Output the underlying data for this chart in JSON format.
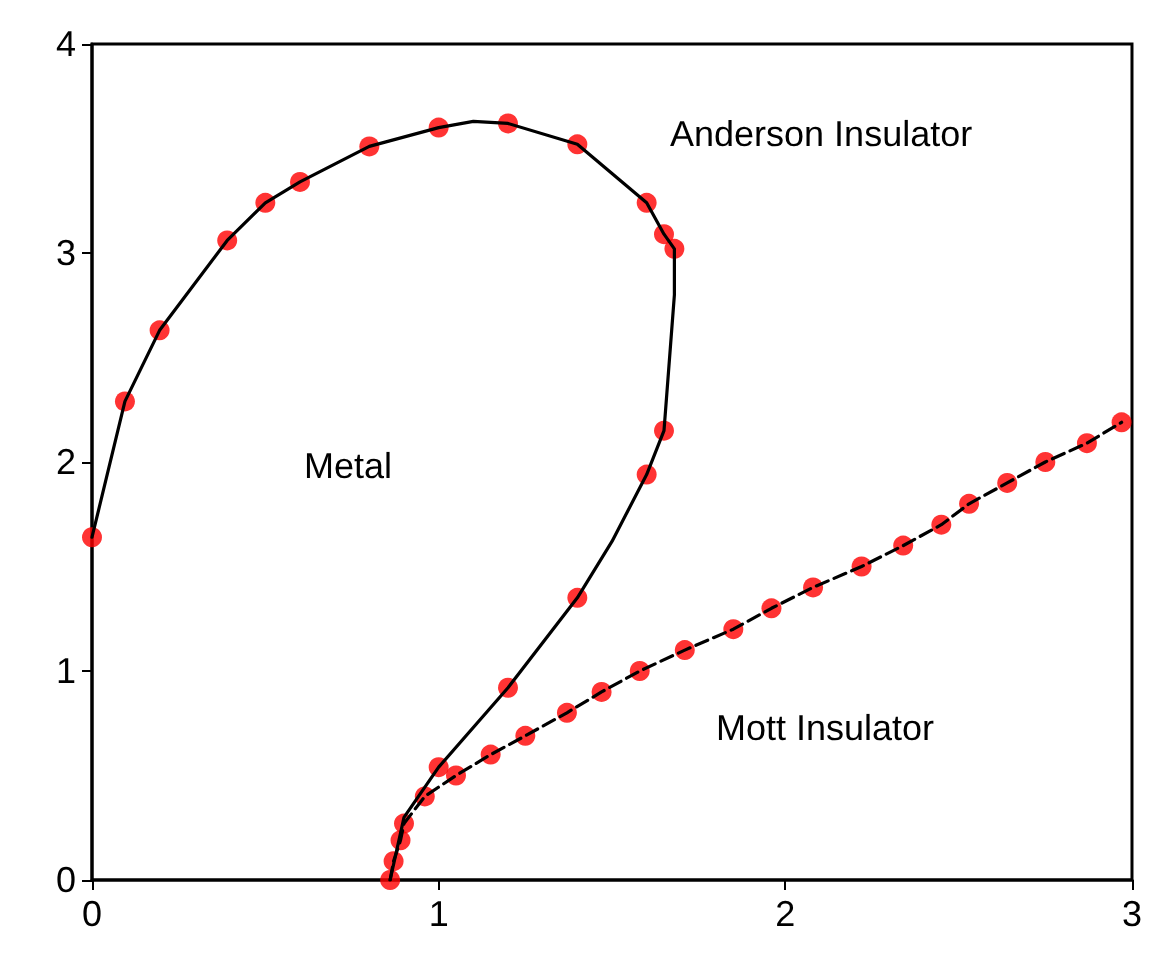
{
  "chart_data": {
    "type": "line",
    "xlim": [
      0,
      3
    ],
    "ylim": [
      0,
      4
    ],
    "xticks": [
      0,
      1,
      2,
      3
    ],
    "yticks": [
      0,
      1,
      2,
      3,
      4
    ],
    "grid": false,
    "series": [
      {
        "color": "#000000",
        "line_style": "solid",
        "marker": "none",
        "x": [
          0,
          0.095,
          0.195,
          0.39,
          0.5,
          0.6,
          0.8,
          1.0,
          1.1,
          1.2,
          1.4,
          1.6,
          1.65,
          1.68,
          1.68,
          1.65,
          1.6,
          1.5,
          1.4,
          1.2,
          1.0,
          0.9,
          0.86
        ],
        "values": [
          1.64,
          2.29,
          2.63,
          3.06,
          3.24,
          3.34,
          3.51,
          3.6,
          3.63,
          3.62,
          3.52,
          3.24,
          3.09,
          3.02,
          2.8,
          2.15,
          1.94,
          1.62,
          1.35,
          0.92,
          0.54,
          0.3,
          0
        ]
      },
      {
        "type": "scatter",
        "color": "#ff0000",
        "marker": "circle",
        "x": [
          0,
          0.095,
          0.195,
          0.39,
          0.5,
          0.6,
          0.8,
          1.0,
          1.2,
          1.4,
          1.6,
          1.65,
          1.68,
          1.65,
          1.6,
          1.4,
          1.2,
          1.0
        ],
        "values": [
          1.64,
          2.29,
          2.63,
          3.06,
          3.24,
          3.34,
          3.51,
          3.6,
          3.62,
          3.52,
          3.24,
          3.09,
          3.02,
          2.15,
          1.94,
          1.35,
          0.92,
          0.54
        ]
      },
      {
        "color": "#000000",
        "line_style": "dashed",
        "marker": "none",
        "x": [
          0.86,
          0.87,
          0.89,
          0.9,
          0.96,
          1.05,
          1.15,
          1.25,
          1.37,
          1.47,
          1.58,
          1.71,
          1.85,
          1.96,
          2.08,
          2.22,
          2.34,
          2.45,
          2.53,
          2.64,
          2.75,
          2.87,
          2.97
        ],
        "values": [
          0,
          0.09,
          0.19,
          0.27,
          0.4,
          0.5,
          0.6,
          0.69,
          0.8,
          0.9,
          1.0,
          1.1,
          1.2,
          1.3,
          1.4,
          1.5,
          1.6,
          1.7,
          1.8,
          1.9,
          2.0,
          2.09,
          2.19
        ]
      },
      {
        "type": "scatter",
        "color": "#ff0000",
        "marker": "circle",
        "x": [
          0.86,
          0.87,
          0.89,
          0.9,
          0.96,
          1.05,
          1.15,
          1.25,
          1.37,
          1.47,
          1.58,
          1.71,
          1.85,
          1.96,
          2.08,
          2.22,
          2.34,
          2.45,
          2.53,
          2.64,
          2.75,
          2.87,
          2.97
        ],
        "values": [
          0,
          0.09,
          0.19,
          0.27,
          0.4,
          0.5,
          0.6,
          0.69,
          0.8,
          0.9,
          1.0,
          1.1,
          1.2,
          1.3,
          1.4,
          1.5,
          1.6,
          1.7,
          1.8,
          1.9,
          2.0,
          2.09,
          2.19
        ]
      }
    ],
    "annotations": [
      "Anderson Insulator",
      "Metal",
      "Mott Insulator"
    ]
  }
}
